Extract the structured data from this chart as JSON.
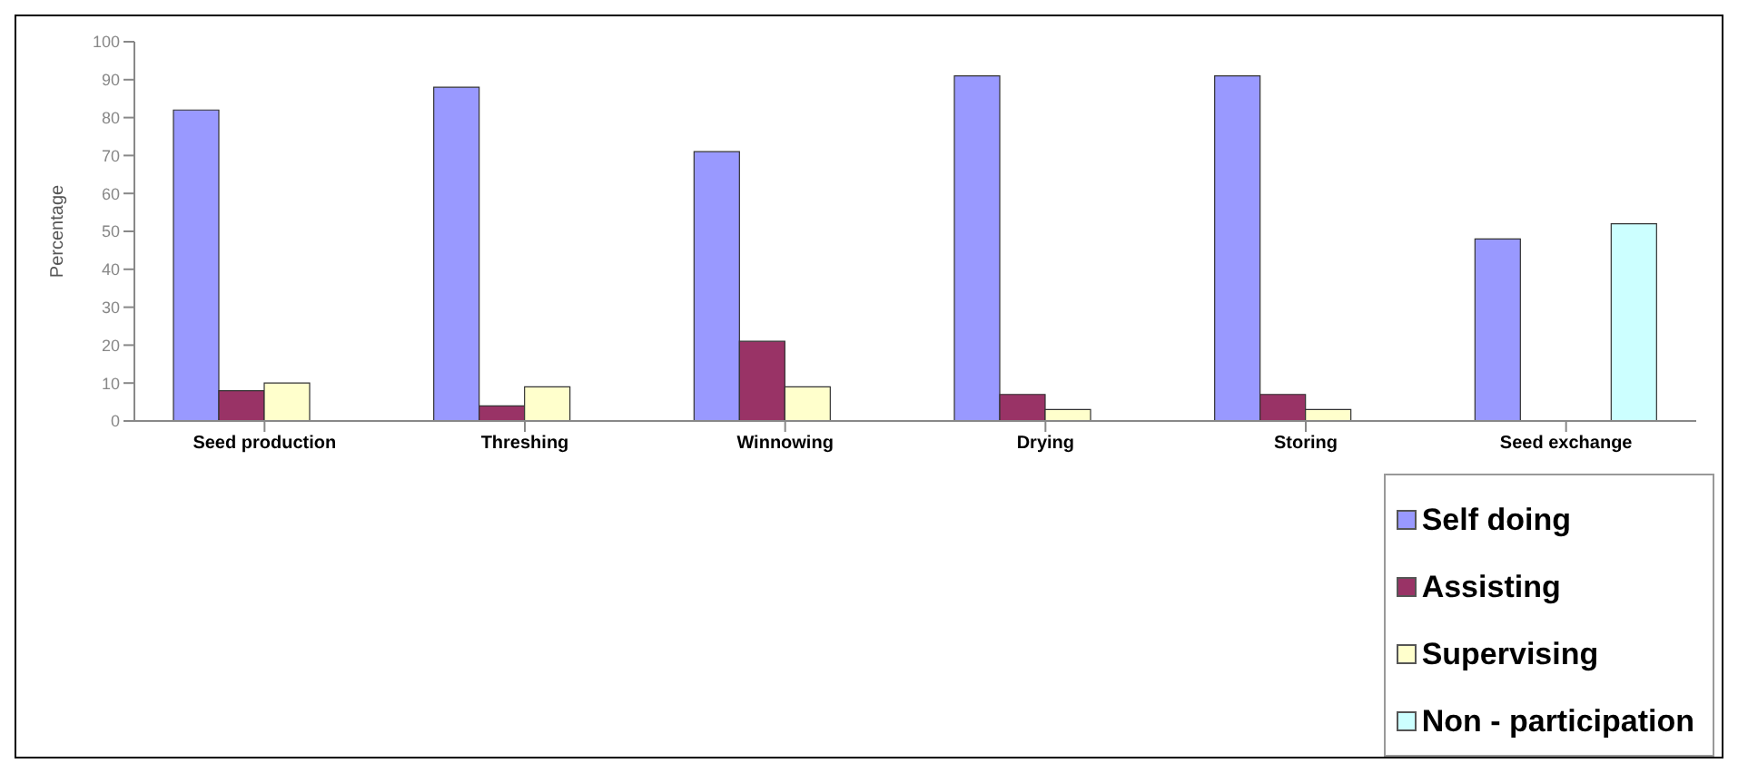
{
  "chart_data": {
    "type": "bar",
    "ylabel": "Percentage",
    "categories": [
      "Seed production",
      "Threshing",
      "Winnowing",
      "Drying",
      "Storing",
      "Seed exchange"
    ],
    "series": [
      {
        "name": "Self doing",
        "color": "#9999ff",
        "values": [
          82,
          88,
          71,
          91,
          91,
          48
        ]
      },
      {
        "name": "Assisting",
        "color": "#993366",
        "values": [
          8,
          4,
          21,
          7,
          7,
          null
        ]
      },
      {
        "name": "Supervising",
        "color": "#ffffcc",
        "values": [
          10,
          9,
          9,
          3,
          3,
          null
        ]
      },
      {
        "name": "Non - participation",
        "color": "#ccffff",
        "values": [
          null,
          null,
          null,
          null,
          null,
          52
        ]
      }
    ],
    "ylim": [
      0,
      100
    ],
    "yticks": [
      0,
      10,
      20,
      30,
      40,
      50,
      60,
      70,
      80,
      90,
      100
    ],
    "grid": false,
    "legend": "bottom right"
  }
}
